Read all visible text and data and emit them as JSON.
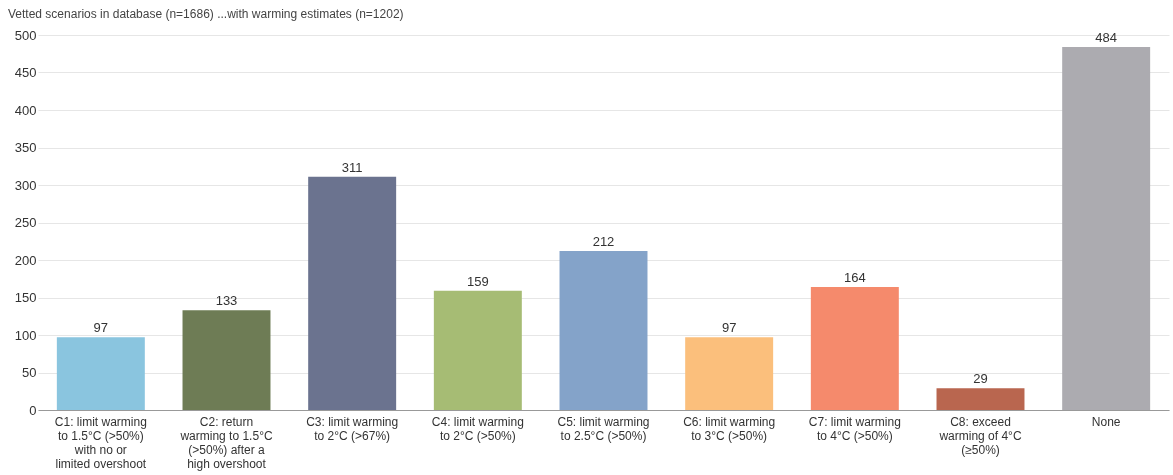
{
  "chart_data": {
    "type": "bar",
    "title": "Vetted scenarios in database (n=1686) ...with warming estimates (n=1202)",
    "categories": [
      "C1: limit warming to 1.5°C (>50%) with no or limited overshoot",
      "C2: return warming to 1.5°C (>50%) after a high overshoot",
      "C3: limit warming to 2°C (>67%)",
      "C4: limit warming to 2°C (>50%)",
      "C5: limit warming to 2.5°C (>50%)",
      "C6: limit warming to 3°C (>50%)",
      "C7: limit warming to 4°C (>50%)",
      "C8: exceed warming of 4°C (≥50%)",
      "None"
    ],
    "values": [
      97,
      133,
      311,
      159,
      212,
      97,
      164,
      29,
      484
    ],
    "colors": [
      "#8ac5df",
      "#6e7c55",
      "#6b738f",
      "#a6bc74",
      "#84a3c9",
      "#fbbf7c",
      "#f58a6c",
      "#b9664f",
      "#acabb0"
    ],
    "ylim": [
      0,
      500
    ],
    "yticks": [
      0,
      50,
      100,
      150,
      200,
      250,
      300,
      350,
      400,
      450,
      500
    ],
    "grid": "y",
    "data_labels": true
  }
}
